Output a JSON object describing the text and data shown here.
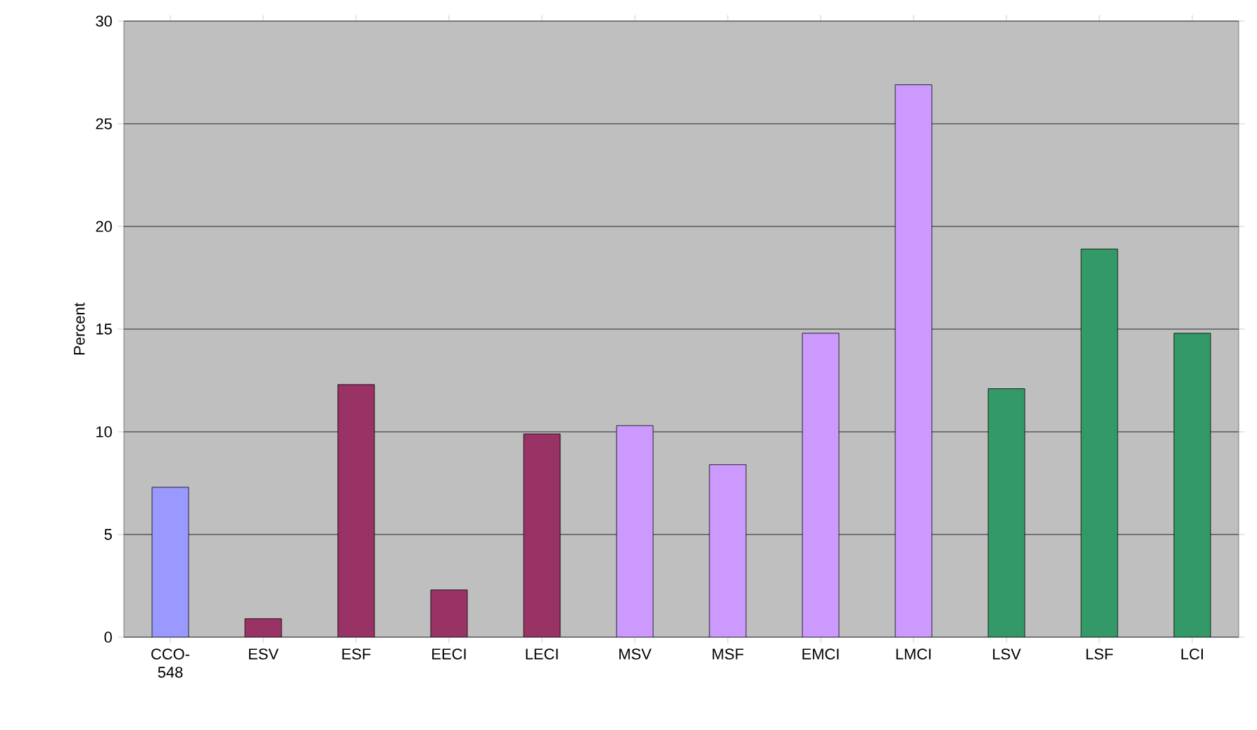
{
  "chart_data": {
    "type": "bar",
    "ylabel": "Percent",
    "categories": [
      "CCO-548",
      "ESV",
      "ESF",
      "EECI",
      "LECI",
      "MSV",
      "MSF",
      "EMCI",
      "LMCI",
      "LSV",
      "LSF",
      "LCI"
    ],
    "values": [
      7.3,
      0.9,
      12.3,
      2.3,
      9.9,
      10.3,
      8.4,
      14.8,
      26.9,
      12.1,
      18.9,
      14.8
    ],
    "colors": [
      "#9999ff",
      "#993366",
      "#993366",
      "#993366",
      "#993366",
      "#cc99ff",
      "#cc99ff",
      "#cc99ff",
      "#cc99ff",
      "#339966",
      "#339966",
      "#339966"
    ],
    "ylim": [
      0,
      30
    ],
    "yticks": [
      0,
      5,
      10,
      15,
      20,
      25,
      30
    ],
    "grid": "y"
  }
}
